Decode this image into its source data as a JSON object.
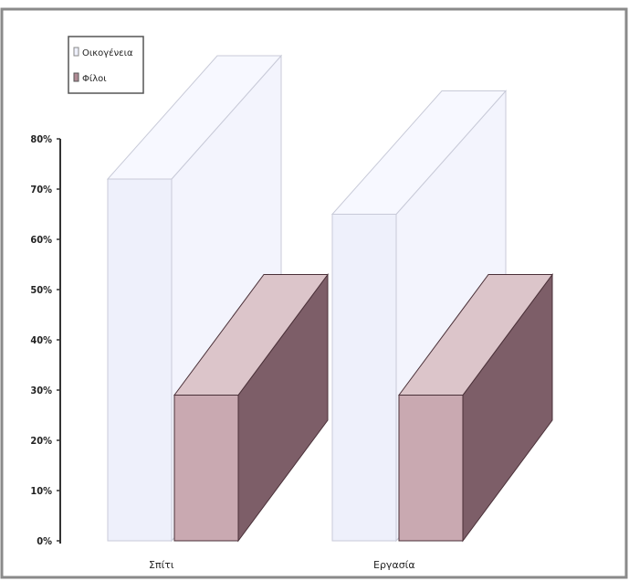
{
  "chart_data": {
    "type": "bar",
    "variant": "3d-clustered",
    "categories": [
      "Σπίτι",
      "Εργασία"
    ],
    "series": [
      {
        "name": "Οικογένεια",
        "values": [
          72,
          65
        ],
        "color": "#eef0fb"
      },
      {
        "name": "Φίλοι",
        "values": [
          29,
          29
        ],
        "color": "#b08a94"
      }
    ],
    "y_ticks": [
      "0%",
      "10%",
      "20%",
      "30%",
      "40%",
      "50%",
      "60%",
      "70%",
      "80%"
    ],
    "ylim": [
      0,
      80
    ],
    "legend_position": "top-left",
    "grid": false
  }
}
